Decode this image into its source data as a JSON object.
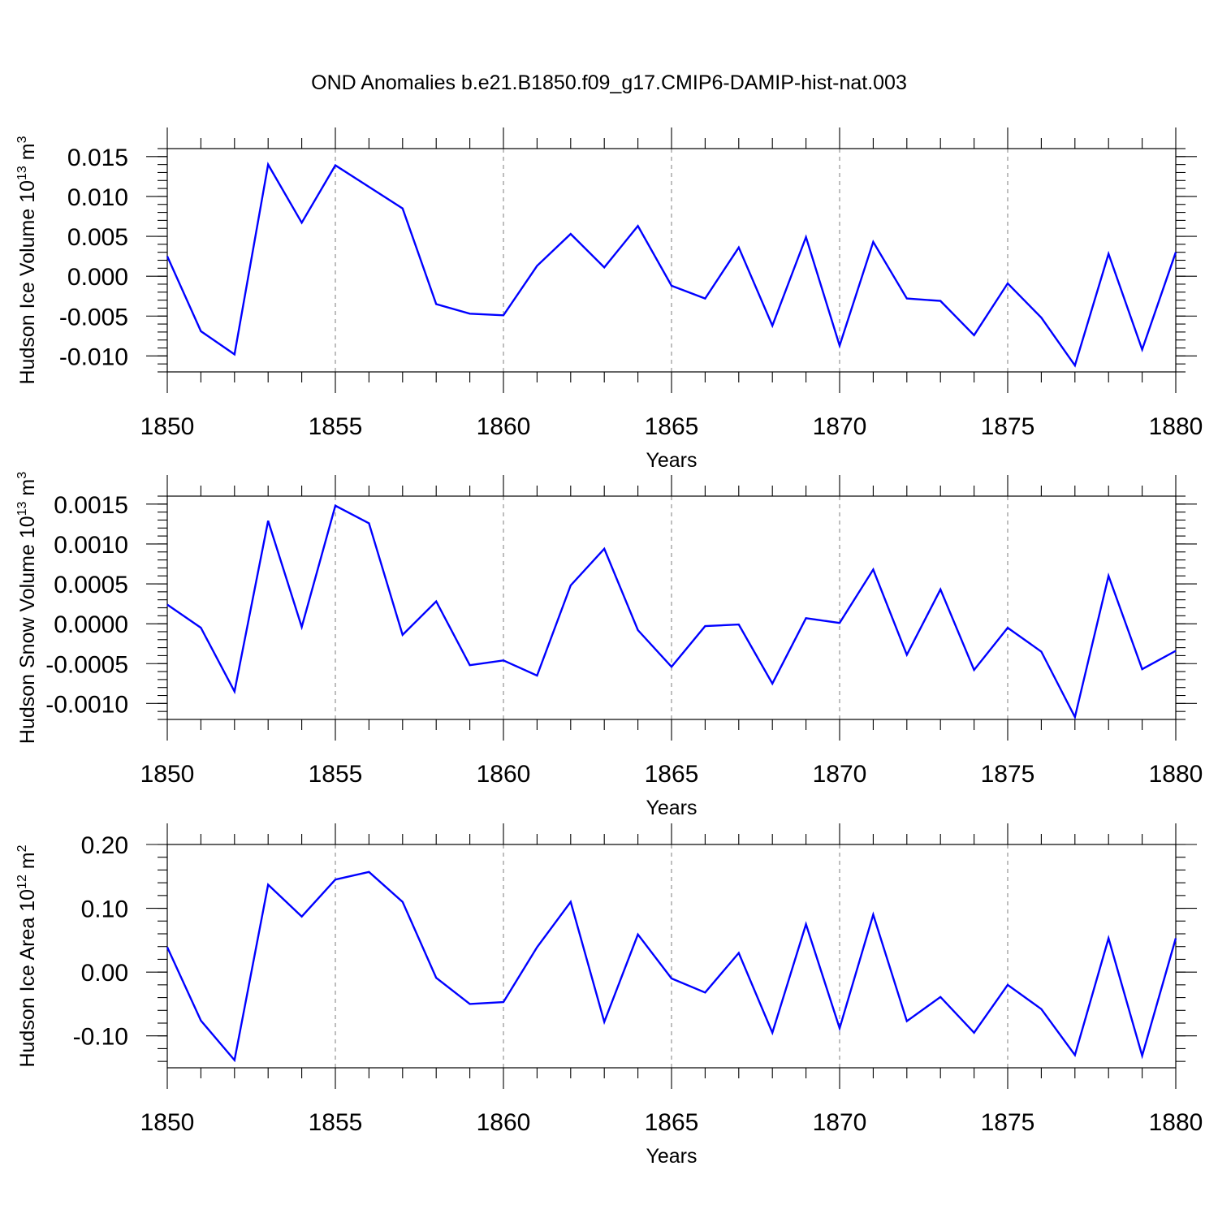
{
  "title": "OND Anomalies b.e21.B1850.f09_g17.CMIP6-DAMIP-hist-nat.003",
  "colors": {
    "line": "#0000ff",
    "grid": "#888888",
    "axis": "#000000"
  },
  "chart_data": [
    {
      "type": "line",
      "id": "ice-volume",
      "ylabel": {
        "main": "Hudson Ice Volume 10",
        "sup1": "13",
        "unit": " m",
        "sup2": "3"
      },
      "xlabel": "Years",
      "xlim": [
        1850,
        1880
      ],
      "ylim": [
        -0.012,
        0.016
      ],
      "xticks": [
        1850,
        1855,
        1860,
        1865,
        1870,
        1875,
        1880
      ],
      "yticks": [
        -0.01,
        -0.005,
        0.0,
        0.005,
        0.01,
        0.015
      ],
      "ytick_labels": [
        "-0.010",
        "-0.005",
        "0.000",
        "0.005",
        "0.010",
        "0.015"
      ],
      "y_minor_step": 0.001,
      "grid_x": [
        1855,
        1860,
        1865,
        1870,
        1875
      ],
      "series": [
        {
          "name": "Hudson Ice Volume",
          "x": [
            1850,
            1851,
            1852,
            1853,
            1854,
            1855,
            1856,
            1857,
            1858,
            1859,
            1860,
            1861,
            1862,
            1863,
            1864,
            1865,
            1866,
            1867,
            1868,
            1869,
            1870,
            1871,
            1872,
            1873,
            1874,
            1875,
            1876,
            1877,
            1878,
            1879,
            1880
          ],
          "values": [
            0.0025,
            -0.0069,
            -0.0098,
            0.014,
            0.0067,
            0.0139,
            0.0112,
            0.0085,
            -0.0035,
            -0.0047,
            -0.0049,
            0.0013,
            0.0053,
            0.0011,
            0.0063,
            -0.0012,
            -0.0028,
            0.0036,
            -0.0062,
            0.0049,
            -0.0087,
            0.0043,
            -0.0028,
            -0.0031,
            -0.0074,
            -0.0009,
            -0.0052,
            -0.0112,
            0.0028,
            -0.0092,
            0.003
          ]
        }
      ]
    },
    {
      "type": "line",
      "id": "snow-volume",
      "ylabel": {
        "main": "Hudson Snow Volume 10",
        "sup1": "13",
        "unit": " m",
        "sup2": "3"
      },
      "xlabel": "Years",
      "xlim": [
        1850,
        1880
      ],
      "ylim": [
        -0.0012,
        0.0016
      ],
      "xticks": [
        1850,
        1855,
        1860,
        1865,
        1870,
        1875,
        1880
      ],
      "yticks": [
        -0.001,
        -0.0005,
        0.0,
        0.0005,
        0.001,
        0.0015
      ],
      "ytick_labels": [
        "-0.0010",
        "-0.0005",
        "0.0000",
        "0.0005",
        "0.0010",
        "0.0015"
      ],
      "y_minor_step": 0.0001,
      "grid_x": [
        1855,
        1860,
        1865,
        1870,
        1875
      ],
      "series": [
        {
          "name": "Hudson Snow Volume",
          "x": [
            1850,
            1851,
            1852,
            1853,
            1854,
            1855,
            1856,
            1857,
            1858,
            1859,
            1860,
            1861,
            1862,
            1863,
            1864,
            1865,
            1866,
            1867,
            1868,
            1869,
            1870,
            1871,
            1872,
            1873,
            1874,
            1875,
            1876,
            1877,
            1878,
            1879,
            1880
          ],
          "values": [
            0.00024,
            -5e-05,
            -0.00085,
            0.00129,
            -4e-05,
            0.00148,
            0.00126,
            -0.00014,
            0.00028,
            -0.00052,
            -0.00046,
            -0.00065,
            0.00048,
            0.00094,
            -8e-05,
            -0.00054,
            -3e-05,
            -1e-05,
            -0.00075,
            7e-05,
            1e-05,
            0.00068,
            -0.00039,
            0.00043,
            -0.00058,
            -5e-05,
            -0.00035,
            -0.00117,
            0.0006,
            -0.00057,
            -0.00034
          ]
        }
      ]
    },
    {
      "type": "line",
      "id": "ice-area",
      "ylabel": {
        "main": "Hudson Ice Area 10",
        "sup1": "12",
        "unit": " m",
        "sup2": "2"
      },
      "xlabel": "Years",
      "xlim": [
        1850,
        1880
      ],
      "ylim": [
        -0.15,
        0.2
      ],
      "xticks": [
        1850,
        1855,
        1860,
        1865,
        1870,
        1875,
        1880
      ],
      "yticks": [
        -0.1,
        0.0,
        0.1,
        0.2
      ],
      "ytick_labels": [
        "-0.10",
        "0.00",
        "0.10",
        "0.20"
      ],
      "y_minor_step": 0.02,
      "grid_x": [
        1855,
        1860,
        1865,
        1870,
        1875
      ],
      "series": [
        {
          "name": "Hudson Ice Area",
          "x": [
            1850,
            1851,
            1852,
            1853,
            1854,
            1855,
            1856,
            1857,
            1858,
            1859,
            1860,
            1861,
            1862,
            1863,
            1864,
            1865,
            1866,
            1867,
            1868,
            1869,
            1870,
            1871,
            1872,
            1873,
            1874,
            1875,
            1876,
            1877,
            1878,
            1879,
            1880
          ],
          "values": [
            0.039,
            -0.076,
            -0.138,
            0.137,
            0.087,
            0.145,
            0.157,
            0.11,
            -0.009,
            -0.05,
            -0.047,
            0.039,
            0.11,
            -0.078,
            0.059,
            -0.01,
            -0.032,
            0.03,
            -0.095,
            0.075,
            -0.088,
            0.09,
            -0.077,
            -0.039,
            -0.095,
            -0.02,
            -0.058,
            -0.13,
            0.053,
            -0.131,
            0.053
          ]
        }
      ]
    }
  ]
}
